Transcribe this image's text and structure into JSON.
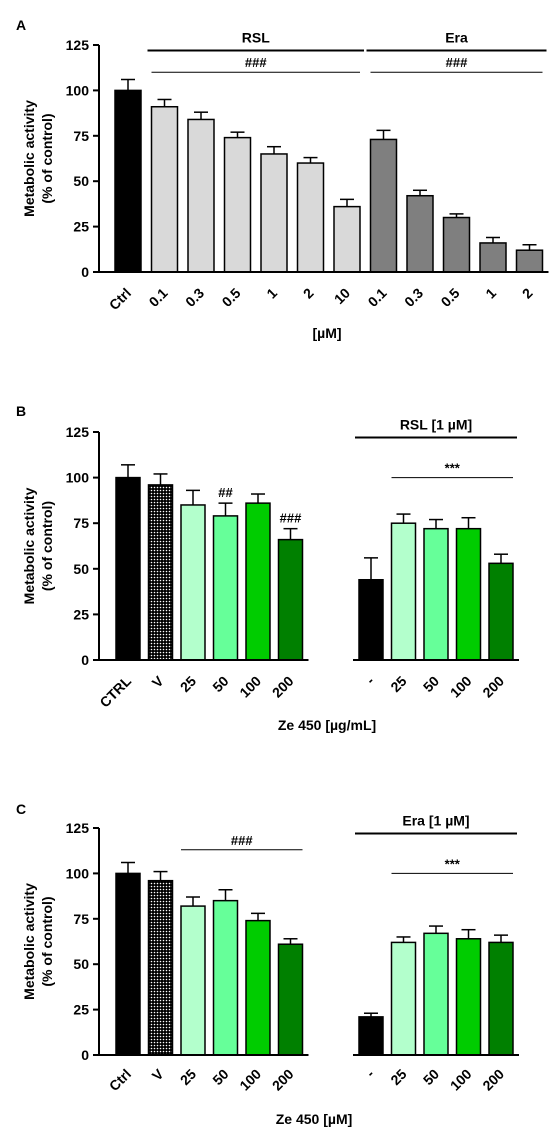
{
  "chart_data": [
    {
      "panel_label": "A",
      "type": "bar",
      "ylabel_line1": "Metabolic activity",
      "ylabel_line2": "(% of  control)",
      "xlabel": "[µM]",
      "ylim": [
        0,
        125
      ],
      "yticks": [
        0,
        25,
        50,
        75,
        100,
        125
      ],
      "categories": [
        "Ctrl",
        "0.1",
        "0.3",
        "0.5",
        "1",
        "2",
        "10",
        "0.1",
        "0.3",
        "0.5",
        "1",
        "2"
      ],
      "values": [
        100,
        91,
        84,
        74,
        65,
        60,
        36,
        73,
        42,
        30,
        16,
        12
      ],
      "errors": [
        6,
        4,
        4,
        3,
        4,
        3,
        4,
        5,
        3,
        2,
        3,
        3
      ],
      "colors": [
        "#000000",
        "#d9d9d9",
        "#d9d9d9",
        "#d9d9d9",
        "#d9d9d9",
        "#d9d9d9",
        "#d9d9d9",
        "#7f7f7f",
        "#7f7f7f",
        "#7f7f7f",
        "#7f7f7f",
        "#7f7f7f"
      ],
      "patterns": [
        "",
        "",
        "",
        "",
        "",
        "",
        "",
        "",
        "",
        "",
        "",
        ""
      ],
      "group_labels": [
        {
          "text": "RSL",
          "from": 1,
          "to": 6
        },
        {
          "text": "Era",
          "from": 7,
          "to": 11
        }
      ],
      "significance": [
        {
          "text": "###",
          "from": 1,
          "to": 6,
          "level": 110
        },
        {
          "text": "###",
          "from": 7,
          "to": 11,
          "level": 110
        }
      ]
    },
    {
      "panel_label": "B",
      "type": "bar",
      "ylabel_line1": "Metabolic activity",
      "ylabel_line2": "(% of  control)",
      "xlabel": "Ze 450 [µg/mL]",
      "ylim": [
        0,
        125
      ],
      "yticks": [
        0,
        25,
        50,
        75,
        100,
        125
      ],
      "categories": [
        "CTRL",
        "V",
        "25",
        "50",
        "100",
        "200",
        "-",
        "25",
        "50",
        "100",
        "200"
      ],
      "values": [
        100,
        96,
        85,
        79,
        86,
        66,
        44,
        75,
        72,
        72,
        53
      ],
      "errors": [
        7,
        6,
        8,
        7,
        5,
        6,
        12,
        5,
        5,
        6,
        5
      ],
      "colors": [
        "#000000",
        "#000000",
        "#b3ffcc",
        "#66ff99",
        "#00cc00",
        "#008000",
        "#000000",
        "#b3ffcc",
        "#66ff99",
        "#00cc00",
        "#008000"
      ],
      "patterns": [
        "",
        "dots",
        "",
        "",
        "",
        "",
        "",
        "",
        "",
        "",
        ""
      ],
      "gap_after": 5,
      "group_labels": [
        {
          "text": "RSL [1 µM]",
          "from": 6,
          "to": 10
        }
      ],
      "bar_marks": [
        {
          "text": "##",
          "index": 3
        },
        {
          "text": "###",
          "index": 5
        }
      ],
      "significance": [
        {
          "text": "***",
          "from": 7,
          "to": 10,
          "level": 100
        }
      ]
    },
    {
      "panel_label": "C",
      "type": "bar",
      "ylabel_line1": "Metabolic activity",
      "ylabel_line2": "(% of  control)",
      "xlabel": "Ze 450 [µM]",
      "ylim": [
        0,
        125
      ],
      "yticks": [
        0,
        25,
        50,
        75,
        100,
        125
      ],
      "categories": [
        "Ctrl",
        "V",
        "25",
        "50",
        "100",
        "200",
        "-",
        "25",
        "50",
        "100",
        "200"
      ],
      "values": [
        100,
        96,
        82,
        85,
        74,
        61,
        21,
        62,
        67,
        64,
        62
      ],
      "errors": [
        6,
        5,
        5,
        6,
        4,
        3,
        2,
        3,
        4,
        5,
        4
      ],
      "colors": [
        "#000000",
        "#000000",
        "#b3ffcc",
        "#66ff99",
        "#00cc00",
        "#008000",
        "#000000",
        "#b3ffcc",
        "#66ff99",
        "#00cc00",
        "#008000"
      ],
      "patterns": [
        "",
        "dots",
        "",
        "",
        "",
        "",
        "",
        "",
        "",
        "",
        ""
      ],
      "gap_after": 5,
      "group_labels": [
        {
          "text": "Era [1 µM]",
          "from": 6,
          "to": 10
        }
      ],
      "significance": [
        {
          "text": "###",
          "from": 2,
          "to": 5,
          "level": 113
        },
        {
          "text": "***",
          "from": 7,
          "to": 10,
          "level": 100
        }
      ]
    }
  ]
}
